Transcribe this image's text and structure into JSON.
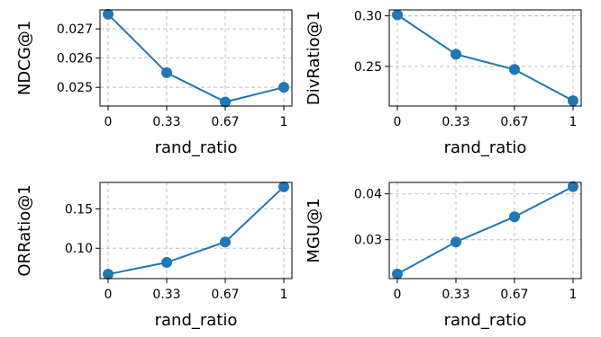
{
  "chart_data": [
    {
      "type": "line",
      "xlabel": "rand_ratio",
      "ylabel": "NDCG@1",
      "x_ticks": [
        "0",
        "0.33",
        "0.67",
        "1"
      ],
      "y_ticks": [
        0.025,
        0.026,
        0.027
      ],
      "y_tick_labels": [
        "0.025",
        "0.026",
        "0.027"
      ],
      "ylim": [
        0.02436,
        0.02765
      ],
      "grid": true,
      "color": "#1f77b4",
      "values": [
        0.0275,
        0.0255,
        0.0245,
        0.025
      ]
    },
    {
      "type": "line",
      "xlabel": "rand_ratio",
      "ylabel": "DivRatio@1",
      "x_ticks": [
        "0",
        "0.33",
        "0.67",
        "1"
      ],
      "y_ticks": [
        0.25,
        0.3
      ],
      "y_tick_labels": [
        "0.25",
        "0.30"
      ],
      "ylim": [
        0.2108,
        0.3059
      ],
      "grid": true,
      "color": "#1f77b4",
      "values": [
        0.301,
        0.262,
        0.247,
        0.216
      ]
    },
    {
      "type": "line",
      "xlabel": "rand_ratio",
      "ylabel": "ORRatio@1",
      "x_ticks": [
        "0",
        "0.33",
        "0.67",
        "1"
      ],
      "y_ticks": [
        0.1,
        0.15
      ],
      "y_tick_labels": [
        "0.10",
        "0.15"
      ],
      "ylim": [
        0.0615,
        0.1835
      ],
      "grid": true,
      "color": "#1f77b4",
      "values": [
        0.067,
        0.082,
        0.108,
        0.178
      ]
    },
    {
      "type": "line",
      "xlabel": "rand_ratio",
      "ylabel": "MGU@1",
      "x_ticks": [
        "0",
        "0.33",
        "0.67",
        "1"
      ],
      "y_ticks": [
        0.03,
        0.04
      ],
      "y_tick_labels": [
        "0.03",
        "0.04"
      ],
      "ylim": [
        0.0215,
        0.0425
      ],
      "grid": true,
      "color": "#1f77b4",
      "values": [
        0.0225,
        0.0295,
        0.035,
        0.0416
      ]
    }
  ]
}
